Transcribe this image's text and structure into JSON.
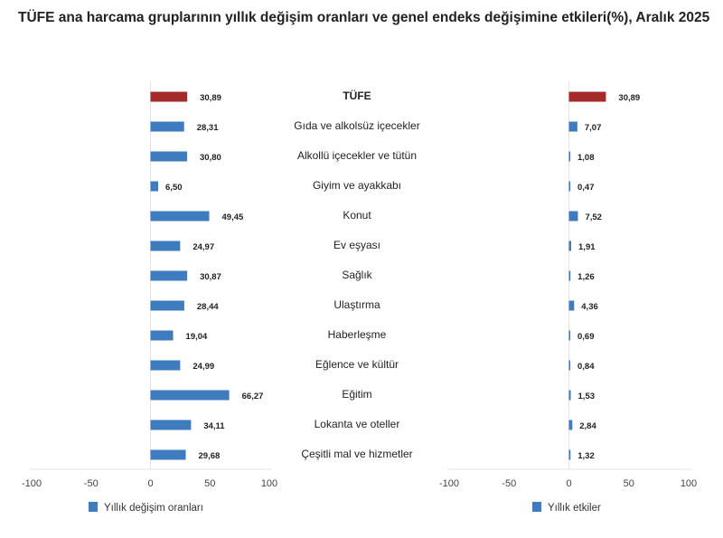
{
  "chart_data": [
    {
      "type": "bar",
      "orientation": "horizontal",
      "title": "TÜFE ana harcama gruplarının yıllık değişim oranları ve genel endeks değişimine etkileri(%), Aralık 2025",
      "categories": [
        "TÜFE",
        "Gıda ve alkolsüz içecekler",
        "Alkollü içecekler ve tütün",
        "Giyim ve ayakkabı",
        "Konut",
        "Ev eşyası",
        "Sağlık",
        "Ulaştırma",
        "Haberleşme",
        "Eğlence ve kültür",
        "Eğitim",
        "Lokanta ve oteller",
        "Çeşitli mal ve hizmetler"
      ],
      "series": [
        {
          "name": "Yıllık değişim oranları",
          "values": [
            30.89,
            28.31,
            30.8,
            6.5,
            49.45,
            24.97,
            30.87,
            28.44,
            19.04,
            24.99,
            66.27,
            34.11,
            29.68
          ]
        }
      ],
      "value_labels": [
        "30,89",
        "28,31",
        "30,80",
        "6,50",
        "49,45",
        "24,97",
        "30,87",
        "28,44",
        "19,04",
        "24,99",
        "66,27",
        "34,11",
        "29,68"
      ],
      "xlim": [
        -100,
        100
      ],
      "xticks": [
        "-100",
        "-50",
        "0",
        "50",
        "100"
      ],
      "legend": "bottom",
      "grid": false,
      "colors": {
        "highlight": "#a52a2a",
        "bar": "#3f7bbf"
      }
    },
    {
      "type": "bar",
      "orientation": "horizontal",
      "series": [
        {
          "name": "Yıllık etkiler",
          "values": [
            30.89,
            7.07,
            1.08,
            0.47,
            7.52,
            1.91,
            1.26,
            4.36,
            0.69,
            0.84,
            1.53,
            2.84,
            1.32
          ]
        }
      ],
      "value_labels": [
        "30,89",
        "7,07",
        "1,08",
        "0,47",
        "7,52",
        "1,91",
        "1,26",
        "4,36",
        "0,69",
        "0,84",
        "1,53",
        "2,84",
        "1,32"
      ],
      "xlim": [
        -100,
        100
      ],
      "xticks": [
        "-100",
        "-50",
        "0",
        "50",
        "100"
      ],
      "legend": "bottom",
      "grid": false,
      "colors": {
        "highlight": "#a52a2a",
        "bar": "#3f7bbf"
      }
    }
  ]
}
